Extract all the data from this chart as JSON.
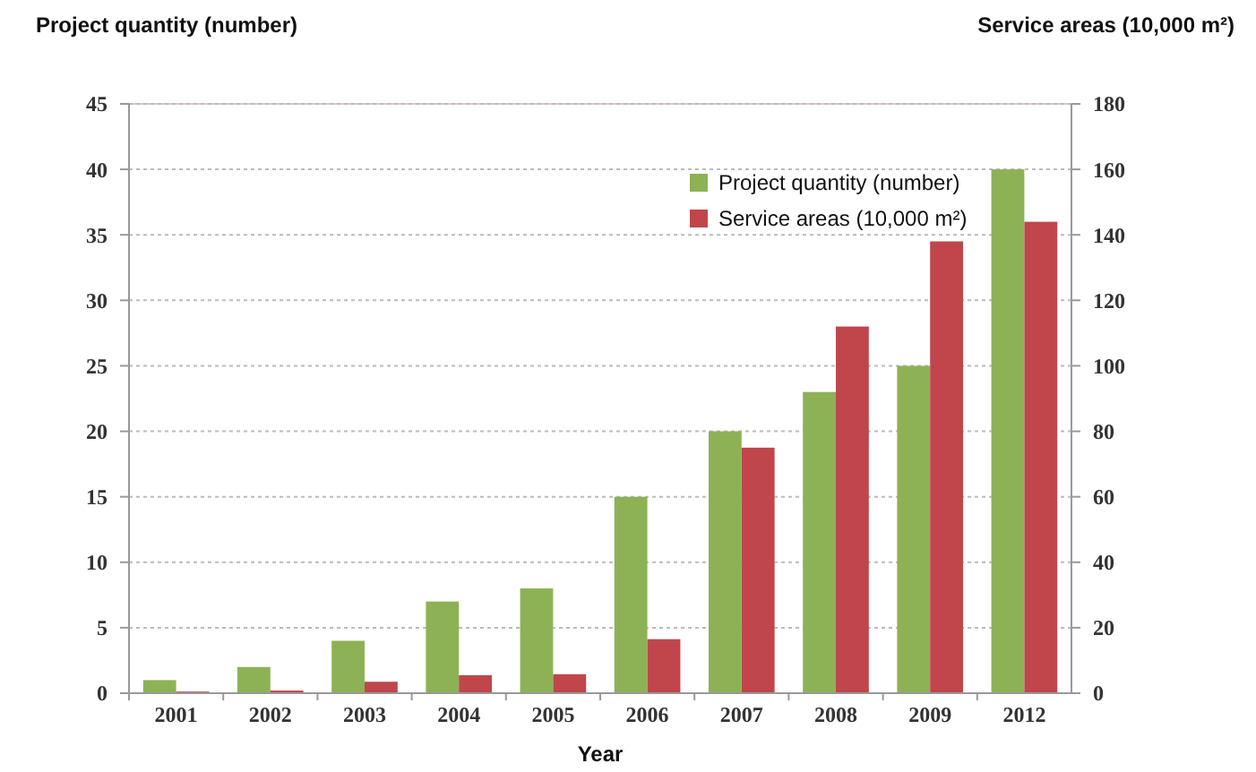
{
  "chart_data": {
    "type": "bar",
    "categories": [
      "2001",
      "2002",
      "2003",
      "2004",
      "2005",
      "2006",
      "2007",
      "2008",
      "2009",
      "2012"
    ],
    "xlabel": "Year",
    "ylabel": "Project quantity (number)",
    "y2label": "Service areas (10,000 m²)",
    "series": [
      {
        "name": "Project quantity (number)",
        "color": "#8db255",
        "values": [
          1,
          2,
          4,
          7,
          8,
          15,
          20,
          23,
          25,
          40
        ]
      },
      {
        "name": "Service areas (10,000 m²)",
        "color": "#c0464c",
        "axis": "y2",
        "values": [
          0.5,
          0.8,
          3.5,
          5.5,
          5.8,
          16.5,
          75,
          112,
          138,
          144
        ]
      }
    ],
    "ylim": [
      0,
      45
    ],
    "yticks": [
      0,
      5,
      10,
      15,
      20,
      25,
      30,
      35,
      40,
      45
    ],
    "y2lim": [
      0,
      180
    ],
    "y2ticks": [
      0,
      20,
      40,
      60,
      80,
      100,
      120,
      140,
      160,
      180
    ],
    "grid": "y",
    "legend": "top right"
  }
}
